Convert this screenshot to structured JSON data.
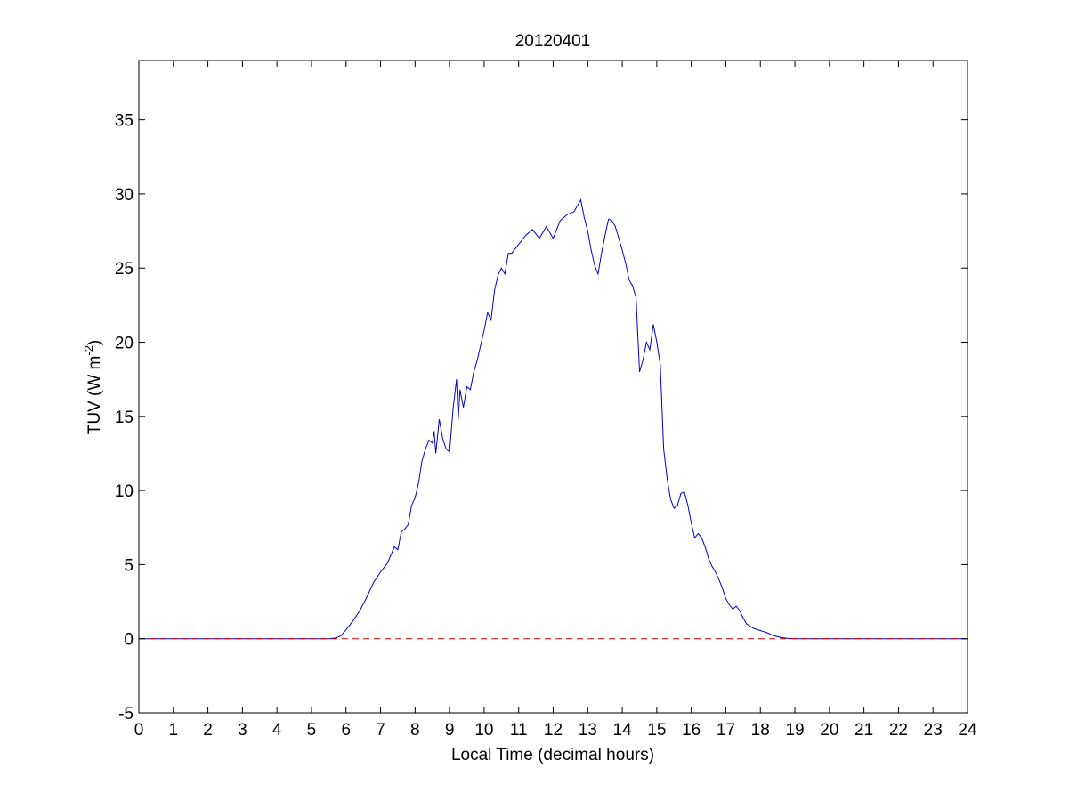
{
  "chart_data": {
    "type": "line",
    "title": "20120401",
    "xlabel": "Local Time (decimal hours)",
    "ylabel_main": "TUV (W m",
    "ylabel_sup": "-2",
    "ylabel_close": ")",
    "xlim": [
      0,
      24
    ],
    "ylim": [
      -5,
      39
    ],
    "xticks": [
      0,
      1,
      2,
      3,
      4,
      5,
      6,
      7,
      8,
      9,
      10,
      11,
      12,
      13,
      14,
      15,
      16,
      17,
      18,
      19,
      20,
      21,
      22,
      23,
      24
    ],
    "yticks": [
      -5,
      0,
      5,
      10,
      15,
      20,
      25,
      30,
      35
    ],
    "grid": false,
    "colors": {
      "series": "#0000cc",
      "baseline": "#cc0000",
      "axes": "#000000"
    },
    "series": [
      {
        "style": "solid",
        "color": "#0000cc",
        "x": [
          0,
          5.5,
          5.7,
          5.85,
          6.0,
          6.2,
          6.4,
          6.6,
          6.8,
          7.0,
          7.2,
          7.4,
          7.5,
          7.6,
          7.7,
          7.8,
          7.9,
          8.0,
          8.1,
          8.2,
          8.3,
          8.4,
          8.5,
          8.55,
          8.6,
          8.7,
          8.8,
          8.9,
          9.0,
          9.1,
          9.2,
          9.25,
          9.3,
          9.4,
          9.5,
          9.6,
          9.7,
          9.8,
          9.9,
          10.0,
          10.1,
          10.2,
          10.3,
          10.4,
          10.5,
          10.6,
          10.7,
          10.8,
          10.9,
          11.0,
          11.2,
          11.4,
          11.6,
          11.8,
          12.0,
          12.2,
          12.4,
          12.6,
          12.8,
          12.9,
          13.0,
          13.1,
          13.2,
          13.3,
          13.4,
          13.5,
          13.6,
          13.7,
          13.8,
          13.9,
          14.0,
          14.1,
          14.2,
          14.3,
          14.4,
          14.5,
          14.6,
          14.7,
          14.8,
          14.9,
          15.0,
          15.1,
          15.2,
          15.3,
          15.4,
          15.5,
          15.6,
          15.7,
          15.8,
          15.9,
          16.0,
          16.1,
          16.2,
          16.3,
          16.4,
          16.5,
          16.6,
          16.7,
          16.8,
          16.9,
          17.0,
          17.1,
          17.2,
          17.3,
          17.4,
          17.5,
          17.6,
          17.8,
          18.0,
          18.2,
          18.4,
          18.6,
          18.8,
          19.0,
          24
        ],
        "y": [
          0,
          0,
          0.05,
          0.2,
          0.6,
          1.2,
          1.9,
          2.8,
          3.8,
          4.5,
          5.1,
          6.2,
          6.0,
          7.2,
          7.4,
          7.7,
          9.0,
          9.5,
          10.5,
          12.0,
          12.8,
          13.4,
          13.2,
          14.0,
          12.5,
          14.8,
          13.5,
          12.8,
          12.6,
          15.5,
          17.5,
          14.8,
          16.8,
          15.6,
          17.0,
          16.8,
          18.0,
          18.8,
          19.8,
          20.8,
          22.0,
          21.5,
          23.5,
          24.5,
          25.0,
          24.6,
          26.0,
          26.0,
          26.3,
          26.6,
          27.2,
          27.6,
          27.0,
          27.8,
          27.0,
          28.2,
          28.6,
          28.8,
          29.6,
          28.4,
          27.5,
          26.2,
          25.2,
          24.6,
          26.0,
          27.2,
          28.3,
          28.2,
          27.8,
          27.0,
          26.2,
          25.3,
          24.2,
          23.8,
          23.0,
          18.0,
          18.8,
          20.0,
          19.5,
          21.2,
          20.0,
          18.5,
          12.8,
          10.8,
          9.4,
          8.8,
          9.0,
          9.8,
          9.9,
          9.0,
          7.8,
          6.8,
          7.1,
          6.8,
          6.2,
          5.4,
          4.9,
          4.5,
          4.0,
          3.4,
          2.7,
          2.3,
          2.0,
          2.2,
          1.9,
          1.4,
          1.0,
          0.7,
          0.55,
          0.4,
          0.2,
          0.08,
          0.02,
          0,
          0
        ]
      },
      {
        "style": "dashed",
        "color": "#cc0000",
        "x": [
          0,
          24
        ],
        "y": [
          0,
          0
        ]
      }
    ]
  }
}
